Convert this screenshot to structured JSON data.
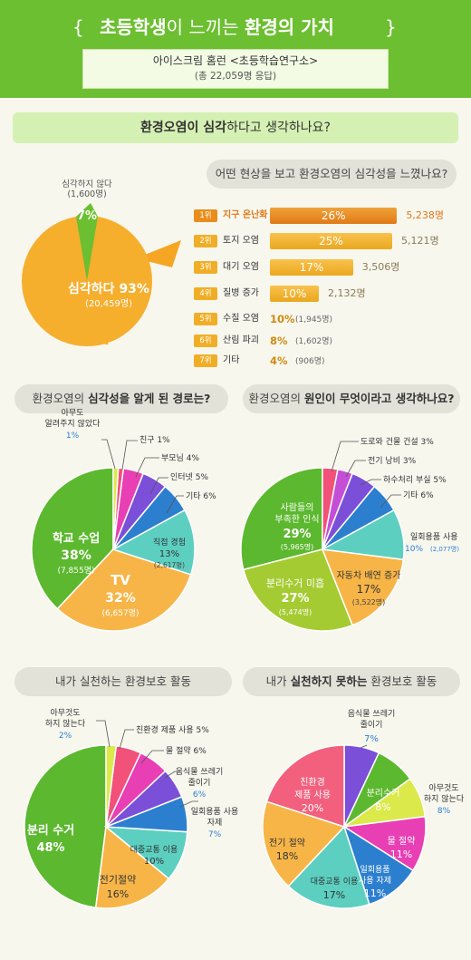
{
  "header": {
    "bracket_l": "{",
    "bracket_r": "}",
    "title_a": "초등학생",
    "title_b": "이 느끼는 ",
    "title_c": "환경의 가치",
    "source_line1": "아이스크림 홈런 <초등학습연구소>",
    "source_line2": "(총 22,059명 응답)"
  },
  "q1": {
    "a": "환경오염이 심각",
    "b": "하다고 생각하나요?"
  },
  "q2": "어떤 현상을 보고 환경오염의 심각성을 느꼈나요?",
  "q3": {
    "a": "환경오염의 ",
    "b": "심각성을 알게 된 경로는?"
  },
  "q4": {
    "a": "환경오염의 ",
    "b": "원인이 무엇이라고 생각하나요?"
  },
  "q5": "내가 실천하는 환경보호 활동",
  "q6": {
    "a": "내가 ",
    "b": "실천하지 못하는",
    "c": " 환경보호 활동"
  },
  "chart_data": [
    {
      "type": "pie",
      "title": "환경오염이 심각하다고 생각하나요?",
      "slices": [
        {
          "label": "심각하다",
          "pct": 93,
          "count": "20,459명",
          "color": "#f6ae2d"
        },
        {
          "label": "심각하지 않다",
          "pct": 7,
          "count": "1,600명",
          "color": "#6cbf30"
        }
      ]
    },
    {
      "type": "bar",
      "title": "어떤 현상을 보고 환경오염의 심각성을 느꼈나요?",
      "items": [
        {
          "rank": "1위",
          "label": "지구 온난화",
          "pct": 26,
          "count": "5,238명"
        },
        {
          "rank": "2위",
          "label": "토지 오염",
          "pct": 25,
          "count": "5,121명"
        },
        {
          "rank": "3위",
          "label": "대기 오염",
          "pct": 17,
          "count": "3,506명"
        },
        {
          "rank": "4위",
          "label": "질병 증가",
          "pct": 10,
          "count": "2,132명"
        },
        {
          "rank": "5위",
          "label": "수질 오염",
          "pct": 10,
          "count": "(1,945명)"
        },
        {
          "rank": "6위",
          "label": "산림 파괴",
          "pct": 8,
          "count": "(1,602명)"
        },
        {
          "rank": "7위",
          "label": "기타",
          "pct": 4,
          "count": "(906명)"
        }
      ]
    },
    {
      "type": "pie",
      "title": "환경오염의 심각성을 알게 된 경로는?",
      "slices": [
        {
          "label": "학교 수업",
          "pct": 38,
          "count": "(7,855명)",
          "color": "#5cb82e"
        },
        {
          "label": "TV",
          "pct": 32,
          "count": "(6,657명)",
          "color": "#f7b548"
        },
        {
          "label": "직접 경험",
          "pct": 13,
          "count": "(2,617명)",
          "color": "#5ccfc1"
        },
        {
          "label": "기타",
          "pct": 6,
          "color": "#2c7fcf"
        },
        {
          "label": "인터넷",
          "pct": 5,
          "color": "#7b4fd8"
        },
        {
          "label": "부모님",
          "pct": 4,
          "color": "#e83fb4"
        },
        {
          "label": "친구",
          "pct": 1,
          "color": "#f2517a"
        },
        {
          "label": "아무도 알려주지 않았다",
          "pct": 1,
          "color": "#dbe94a"
        }
      ]
    },
    {
      "type": "pie",
      "title": "환경오염의 원인이 무엇이라고 생각하나요?",
      "slices": [
        {
          "label": "사람들의 부족한 인식",
          "pct": 29,
          "count": "(5,965명)",
          "color": "#5cb82e"
        },
        {
          "label": "분리수거 미흡",
          "pct": 27,
          "count": "(5,474명)",
          "color": "#a5cb32"
        },
        {
          "label": "자동차 배연 증가",
          "pct": 17,
          "count": "(3,522명)",
          "color": "#f7b548"
        },
        {
          "label": "일회용품 사용",
          "pct": 10,
          "count": "(2,077명)",
          "color": "#5ccfc1"
        },
        {
          "label": "기타",
          "pct": 6,
          "color": "#2c7fcf"
        },
        {
          "label": "하수처리 부실",
          "pct": 5,
          "color": "#7b4fd8"
        },
        {
          "label": "전기 낭비",
          "pct": 3,
          "color": "#c44fd6"
        },
        {
          "label": "도로와 건물 건설",
          "pct": 3,
          "color": "#f2517a"
        }
      ]
    },
    {
      "type": "pie",
      "title": "내가 실천하는 환경보호 활동",
      "slices": [
        {
          "label": "분리 수거",
          "pct": 48,
          "color": "#5cb82e"
        },
        {
          "label": "전기절약",
          "pct": 16,
          "color": "#f7b548"
        },
        {
          "label": "대중교통 이용",
          "pct": 10,
          "color": "#5ccfc1"
        },
        {
          "label": "일회용품 사용 자제",
          "pct": 7,
          "color": "#2c7fcf"
        },
        {
          "label": "음식물 쓰레기 줄이기",
          "pct": 6,
          "color": "#7b4fd8"
        },
        {
          "label": "물 절약",
          "pct": 6,
          "color": "#e83fb4"
        },
        {
          "label": "친환경 제품 사용",
          "pct": 5,
          "color": "#f2517a"
        },
        {
          "label": "아무것도 하지 않는다",
          "pct": 2,
          "color": "#dbe94a"
        }
      ]
    },
    {
      "type": "pie",
      "title": "내가 실천하지 못하는 환경보호 활동",
      "slices": [
        {
          "label": "음식물 쓰레기 줄이기",
          "pct": 7,
          "color": "#7b4fd8"
        },
        {
          "label": "분리수거",
          "pct": 8,
          "color": "#5cb82e"
        },
        {
          "label": "아무것도 하지 않는다",
          "pct": 8,
          "color": "#dbe94a"
        },
        {
          "label": "물 절약",
          "pct": 11,
          "color": "#e83fb4"
        },
        {
          "label": "일회용품 사용 자제",
          "pct": 11,
          "color": "#2c7fcf"
        },
        {
          "label": "대중교통 이용",
          "pct": 17,
          "color": "#5ccfc1"
        },
        {
          "label": "전기 절약",
          "pct": 18,
          "color": "#f7b548"
        },
        {
          "label": "친환경 제품 사용",
          "pct": 20,
          "color": "#f2607e"
        }
      ]
    }
  ]
}
